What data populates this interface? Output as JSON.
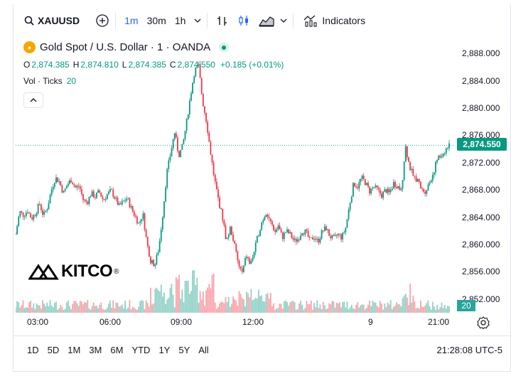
{
  "toolbar": {
    "symbol": "XAUUSD",
    "intervals": [
      "1m",
      "30m",
      "1h"
    ],
    "indicators_label": "Indicators"
  },
  "legend": {
    "title": "Gold Spot / U.S. Dollar · 1 · OANDA",
    "ohlc": {
      "o_label": "O",
      "o": "2,874.385",
      "h_label": "H",
      "h": "2,874.810",
      "l_label": "L",
      "l": "2,874.385",
      "c_label": "C",
      "c": "2,874.550",
      "change": "+0.185 (+0.01%)"
    },
    "vol_label": "Vol · Ticks",
    "vol_value": "20"
  },
  "price_axis": [
    "2,888.000",
    "2,884.000",
    "2,880.000",
    "2,876.000",
    "2,872.000",
    "2,868.000",
    "2,864.000",
    "2,860.000",
    "2,856.000",
    "2,852.000"
  ],
  "current_price": "2,874.550",
  "volume_badge": "20",
  "time_axis": [
    "03:00",
    "06:00",
    "09:00",
    "12:00",
    "9",
    "21:00"
  ],
  "ranges": [
    "1D",
    "5D",
    "1M",
    "3M",
    "6M",
    "YTD",
    "1Y",
    "5Y",
    "All"
  ],
  "clock": "21:28:08 UTC-5",
  "logo_text": "KITCO",
  "colors": {
    "up": "#089981",
    "down": "#f23645",
    "accent": "#2962ff"
  },
  "chart_data": {
    "type": "candlestick",
    "y_range": [
      2850,
      2890
    ],
    "y_ticks": [
      2852,
      2856,
      2860,
      2864,
      2868,
      2872,
      2876,
      2880,
      2884,
      2888
    ],
    "close_path": [
      [
        0,
        2861.5
      ],
      [
        4,
        2864.8
      ],
      [
        8,
        2864.3
      ],
      [
        12,
        2865.0
      ],
      [
        16,
        2863.8
      ],
      [
        20,
        2864.6
      ],
      [
        24,
        2866.0
      ],
      [
        28,
        2864.2
      ],
      [
        32,
        2865.5
      ],
      [
        36,
        2868.0
      ],
      [
        40,
        2869.8
      ],
      [
        44,
        2869.2
      ],
      [
        48,
        2867.5
      ],
      [
        52,
        2868.8
      ],
      [
        56,
        2869.5
      ],
      [
        60,
        2868.3
      ],
      [
        64,
        2868.6
      ],
      [
        68,
        2866.5
      ],
      [
        72,
        2866.2
      ],
      [
        76,
        2867.5
      ],
      [
        80,
        2867.0
      ],
      [
        84,
        2867.8
      ],
      [
        88,
        2866.5
      ],
      [
        92,
        2867.3
      ],
      [
        96,
        2867.9
      ],
      [
        100,
        2866.8
      ],
      [
        104,
        2865.6
      ],
      [
        108,
        2866.2
      ],
      [
        112,
        2866.8
      ],
      [
        116,
        2865.4
      ],
      [
        120,
        2864.2
      ],
      [
        124,
        2863.0
      ],
      [
        128,
        2864.5
      ],
      [
        132,
        2860.2
      ],
      [
        136,
        2857.5
      ],
      [
        140,
        2857.0
      ],
      [
        144,
        2859.5
      ],
      [
        148,
        2864.5
      ],
      [
        152,
        2870.5
      ],
      [
        156,
        2873.5
      ],
      [
        160,
        2876.5
      ],
      [
        164,
        2873.0
      ],
      [
        168,
        2874.5
      ],
      [
        172,
        2878.0
      ],
      [
        176,
        2882.0
      ],
      [
        180,
        2885.5
      ],
      [
        184,
        2886.2
      ],
      [
        188,
        2881.0
      ],
      [
        192,
        2878.0
      ],
      [
        196,
        2873.5
      ],
      [
        200,
        2869.5
      ],
      [
        204,
        2866.5
      ],
      [
        208,
        2864.0
      ],
      [
        212,
        2860.5
      ],
      [
        216,
        2862.5
      ],
      [
        220,
        2860.0
      ],
      [
        224,
        2857.0
      ],
      [
        228,
        2855.8
      ],
      [
        232,
        2858.5
      ],
      [
        236,
        2857.0
      ],
      [
        240,
        2859.0
      ],
      [
        244,
        2861.5
      ],
      [
        248,
        2863.5
      ],
      [
        252,
        2864.8
      ],
      [
        256,
        2863.5
      ],
      [
        260,
        2861.5
      ],
      [
        264,
        2862.8
      ],
      [
        268,
        2861.0
      ],
      [
        272,
        2862.0
      ],
      [
        276,
        2861.5
      ],
      [
        280,
        2860.5
      ],
      [
        284,
        2860.8
      ],
      [
        288,
        2862.0
      ],
      [
        292,
        2861.8
      ],
      [
        296,
        2860.5
      ],
      [
        300,
        2861.2
      ],
      [
        304,
        2860.4
      ],
      [
        308,
        2861.8
      ],
      [
        312,
        2862.5
      ],
      [
        316,
        2861.2
      ],
      [
        320,
        2860.8
      ],
      [
        324,
        2861.5
      ],
      [
        328,
        2861.0
      ],
      [
        332,
        2862.5
      ],
      [
        336,
        2866.0
      ],
      [
        340,
        2869.0
      ],
      [
        344,
        2868.5
      ],
      [
        348,
        2869.8
      ],
      [
        352,
        2869.0
      ],
      [
        356,
        2867.8
      ],
      [
        360,
        2868.5
      ],
      [
        364,
        2868.0
      ],
      [
        368,
        2867.2
      ],
      [
        372,
        2868.0
      ],
      [
        376,
        2867.5
      ],
      [
        380,
        2869.0
      ],
      [
        384,
        2868.6
      ],
      [
        388,
        2867.8
      ],
      [
        392,
        2874.5
      ],
      [
        396,
        2871.5
      ],
      [
        400,
        2870.0
      ],
      [
        404,
        2869.5
      ],
      [
        408,
        2868.0
      ],
      [
        412,
        2867.8
      ],
      [
        416,
        2869.0
      ],
      [
        420,
        2870.5
      ],
      [
        424,
        2872.5
      ],
      [
        428,
        2873.0
      ],
      [
        432,
        2873.8
      ],
      [
        436,
        2874.55
      ]
    ]
  }
}
